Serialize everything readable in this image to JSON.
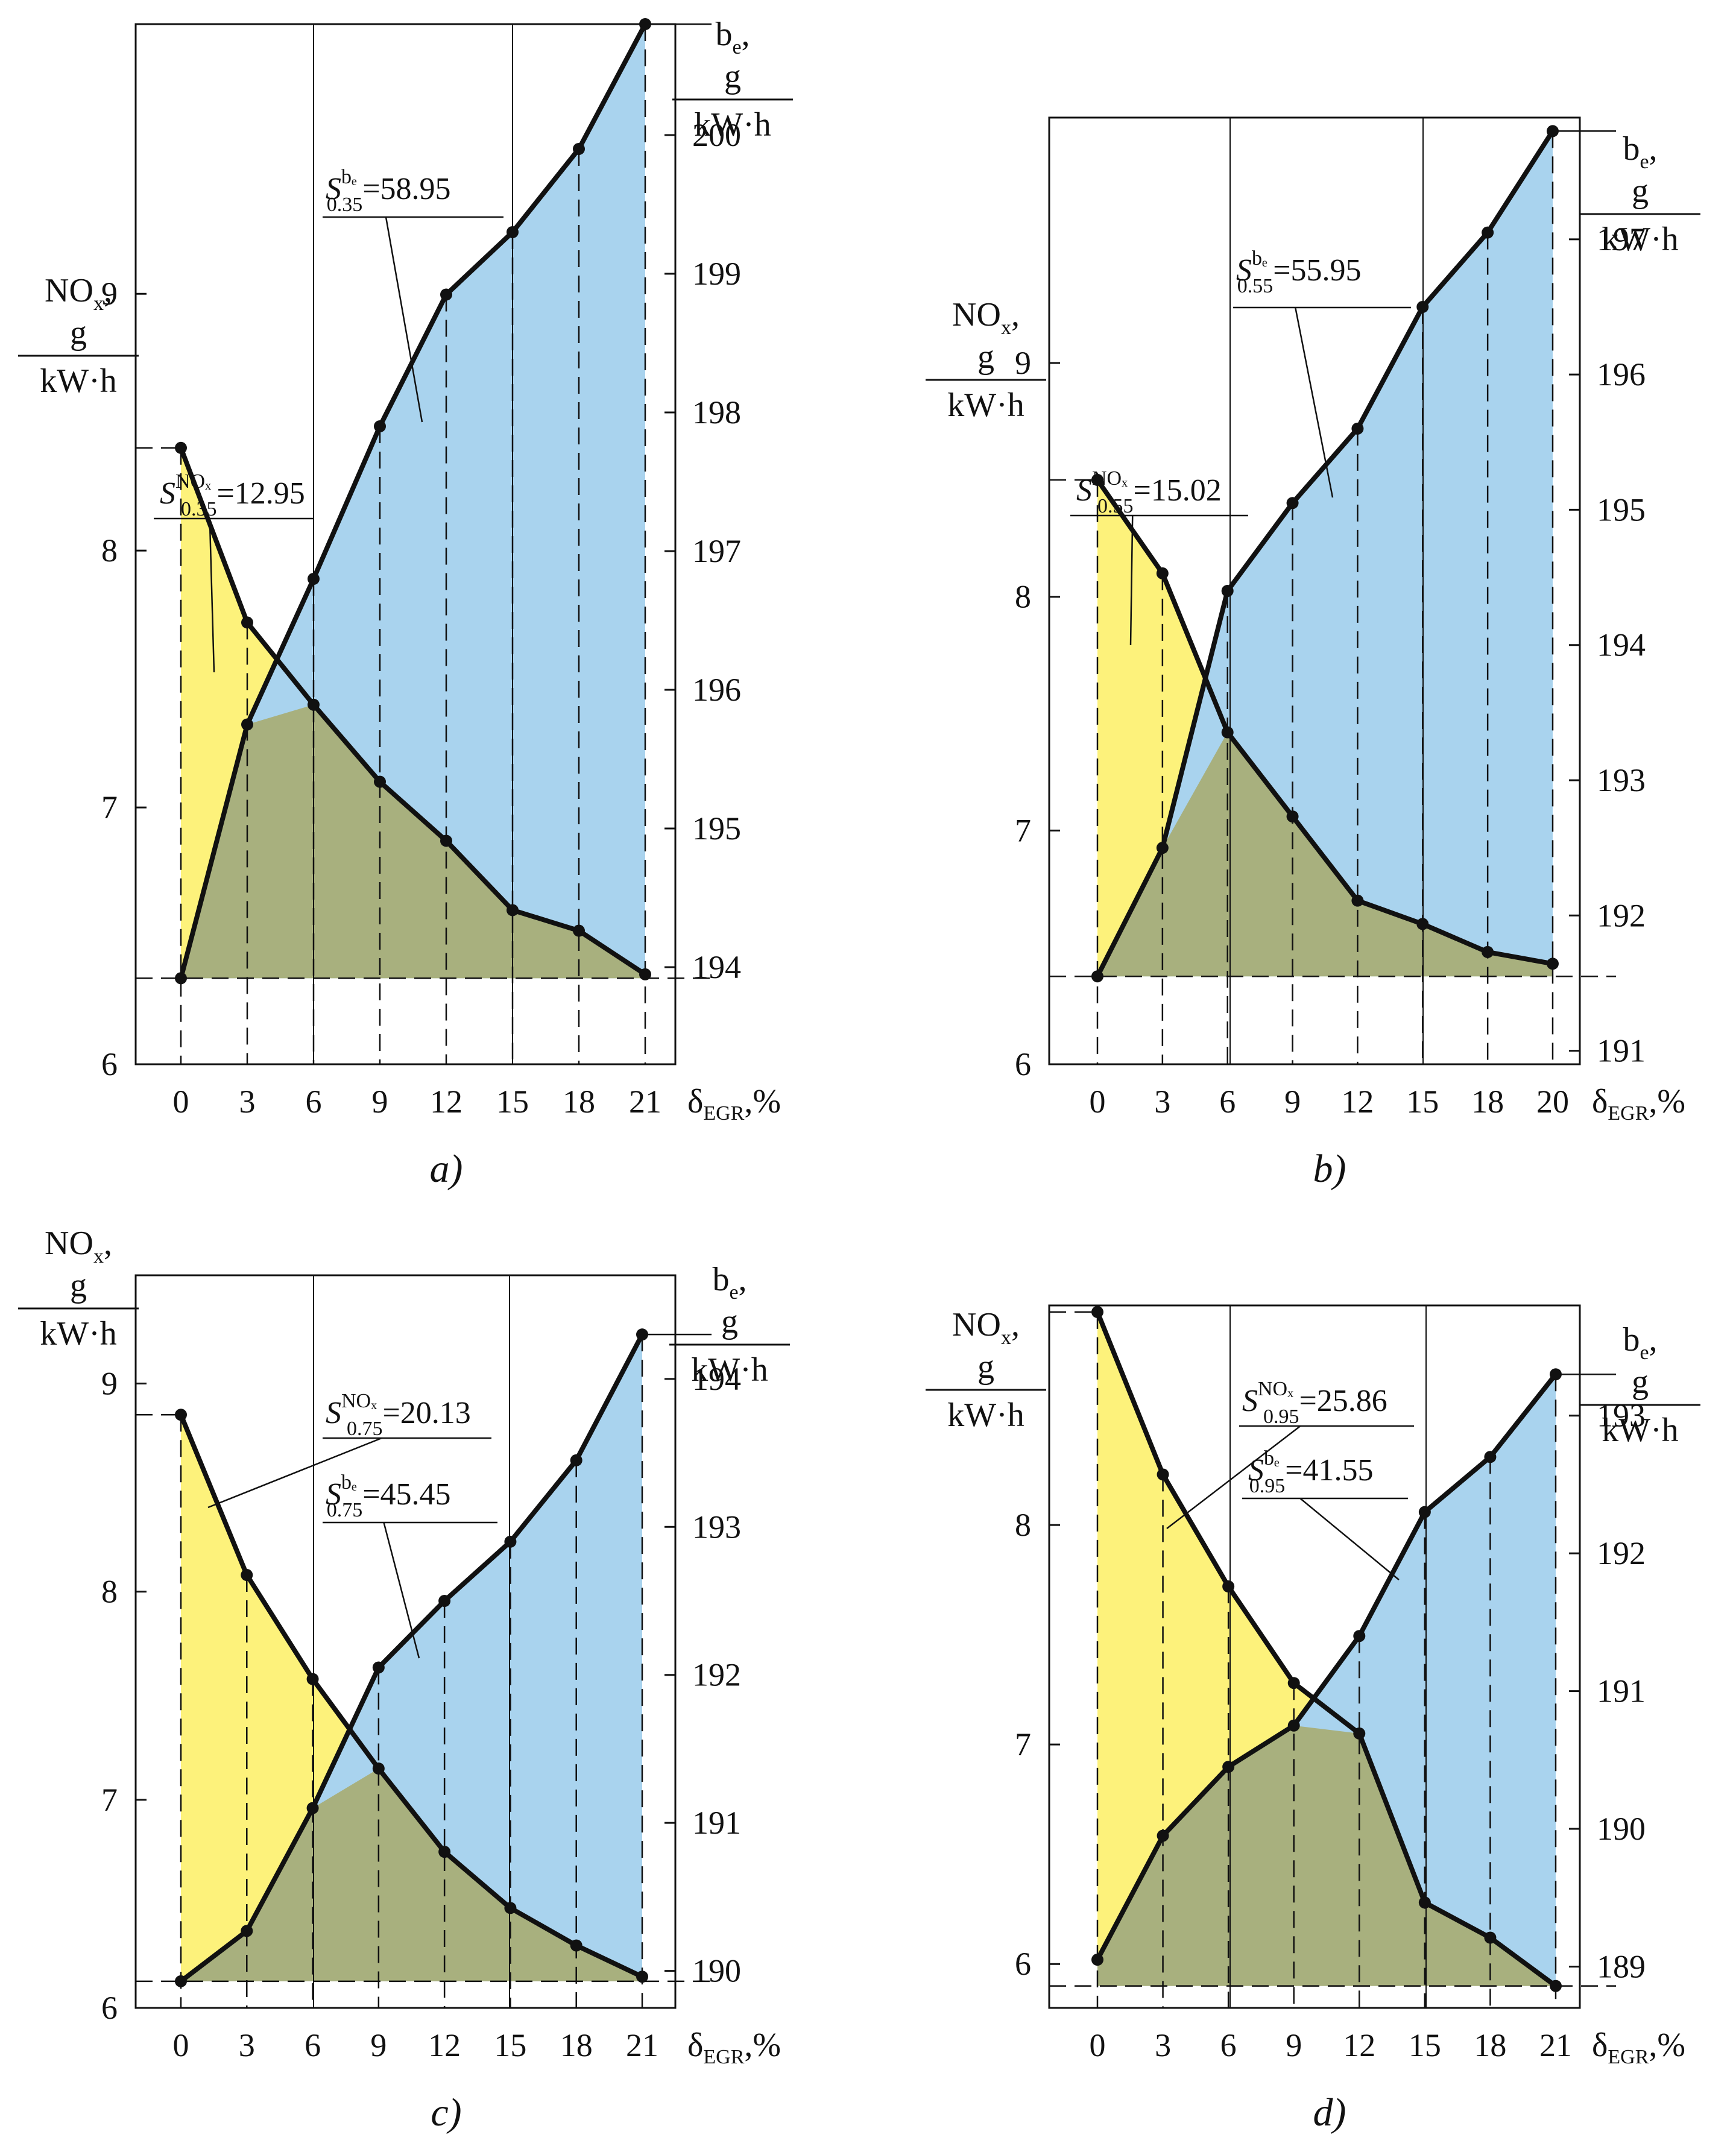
{
  "figure": {
    "x_axis_label_delta": "δ",
    "x_axis_label_sub": "EGR",
    "x_axis_label_tail": ",%",
    "nox_label": {
      "main": "NO",
      "sub": "x",
      "tail": ",",
      "num": "g",
      "den": "kW·h"
    },
    "be_label": {
      "main": "b",
      "sub": "e",
      "tail": ",",
      "num": "g",
      "den": "kW·h"
    },
    "colors": {
      "nox_fill": "#fdf27b",
      "be_fill": "#a9d3ee",
      "overlap_fill": "#a8b07e",
      "line": "#111111"
    }
  },
  "chart_data": [
    {
      "type": "line",
      "panel": "a)",
      "x": [
        0,
        3,
        6,
        9,
        12,
        15,
        18,
        21
      ],
      "x_ticks": [
        "0",
        "3",
        "6",
        "9",
        "12",
        "15",
        "18",
        "21"
      ],
      "series": [
        {
          "name": "NOx",
          "axis": "left",
          "values": [
            8.4,
            7.72,
            7.4,
            7.1,
            6.87,
            6.6,
            6.52,
            6.35
          ]
        },
        {
          "name": "be",
          "axis": "right",
          "values": [
            193.92,
            195.75,
            196.8,
            197.9,
            198.85,
            199.3,
            199.9,
            200.8
          ]
        }
      ],
      "left_axis": {
        "range": [
          6,
          10.05
        ],
        "ticks": [
          6,
          7,
          8,
          9
        ],
        "tick_labels": [
          "6",
          "7",
          "8",
          "9"
        ]
      },
      "right_axis": {
        "range": [
          193.3,
          200.8
        ],
        "ticks": [
          194,
          195,
          196,
          197,
          198,
          199,
          200
        ],
        "tick_labels": [
          "194",
          "195",
          "196",
          "197",
          "198",
          "199",
          "200"
        ]
      },
      "annotations": {
        "nox_area": {
          "S": "S",
          "sup": "NOₓ",
          "sub": "0.35",
          "value": "=12.95"
        },
        "be_area": {
          "S": "S",
          "sup": "bₑ",
          "sub": "0.35",
          "value": "=58.95"
        }
      }
    },
    {
      "type": "line",
      "panel": "b)",
      "x": [
        0,
        3,
        6,
        9,
        12,
        15,
        18,
        20
      ],
      "x_ticks": [
        "0",
        "3",
        "6",
        "9",
        "12",
        "15",
        "18",
        "20"
      ],
      "series": [
        {
          "name": "NOx",
          "axis": "left",
          "values": [
            8.5,
            8.1,
            7.42,
            7.06,
            6.7,
            6.6,
            6.48,
            6.43
          ]
        },
        {
          "name": "be",
          "axis": "right",
          "values": [
            191.55,
            192.5,
            194.4,
            195.05,
            195.6,
            196.5,
            197.05,
            197.8
          ]
        }
      ],
      "left_axis": {
        "range": [
          6,
          10.05
        ],
        "ticks": [
          6,
          7,
          8,
          9
        ],
        "tick_labels": [
          "6",
          "7",
          "8",
          "9"
        ]
      },
      "right_axis": {
        "range": [
          190.9,
          197.9
        ],
        "ticks": [
          191,
          192,
          193,
          194,
          195,
          196,
          197
        ],
        "tick_labels": [
          "191",
          "192",
          "193",
          "194",
          "195",
          "196",
          "197"
        ]
      },
      "annotations": {
        "nox_area": {
          "S": "S",
          "sup": "NOₓ",
          "sub": "0.55",
          "value": "=15.02"
        },
        "be_area": {
          "S": "S",
          "sup": "bₑ",
          "sub": "0.55",
          "value": "=55.95"
        }
      }
    },
    {
      "type": "line",
      "panel": "c)",
      "x": [
        0,
        3,
        6,
        9,
        12,
        15,
        18,
        21
      ],
      "x_ticks": [
        "0",
        "3",
        "6",
        "9",
        "12",
        "15",
        "18",
        "21"
      ],
      "series": [
        {
          "name": "NOx",
          "axis": "left",
          "values": [
            8.85,
            8.08,
            7.58,
            7.15,
            6.75,
            6.48,
            6.3,
            6.15
          ]
        },
        {
          "name": "be",
          "axis": "right",
          "values": [
            189.93,
            190.27,
            191.1,
            192.05,
            192.5,
            192.9,
            193.45,
            194.3
          ]
        }
      ],
      "left_axis": {
        "range": [
          6,
          9.52
        ],
        "ticks": [
          6,
          7,
          8,
          9
        ],
        "tick_labels": [
          "6",
          "7",
          "8",
          "9"
        ]
      },
      "right_axis": {
        "range": [
          189.75,
          194.7
        ],
        "ticks": [
          190,
          191,
          192,
          193,
          194
        ],
        "tick_labels": [
          "190",
          "191",
          "192",
          "193",
          "194"
        ]
      },
      "annotations": {
        "nox_area": {
          "S": "S",
          "sup": "NOₓ",
          "sub": "0.75",
          "value": "=20.13"
        },
        "be_area": {
          "S": "S",
          "sup": "bₑ",
          "sub": "0.75",
          "value": "=45.45"
        }
      }
    },
    {
      "type": "line",
      "panel": "d)",
      "x": [
        0,
        3,
        6,
        9,
        12,
        15,
        18,
        21
      ],
      "x_ticks": [
        "0",
        "3",
        "6",
        "9",
        "12",
        "15",
        "18",
        "21"
      ],
      "series": [
        {
          "name": "NOx",
          "axis": "left",
          "values": [
            8.97,
            8.23,
            7.72,
            7.28,
            7.05,
            6.28,
            6.12,
            5.9
          ]
        },
        {
          "name": "be",
          "axis": "right",
          "values": [
            189.05,
            189.95,
            190.45,
            190.75,
            191.4,
            192.3,
            192.7,
            193.3
          ]
        }
      ],
      "left_axis": {
        "range": [
          5.8,
          9.0
        ],
        "ticks": [
          6,
          7,
          8
        ],
        "tick_labels": [
          "6",
          "7",
          "8"
        ]
      },
      "right_axis": {
        "range": [
          188.7,
          193.8
        ],
        "ticks": [
          189,
          190,
          191,
          192,
          193
        ],
        "tick_labels": [
          "189",
          "190",
          "191",
          "192",
          "193"
        ]
      },
      "annotations": {
        "nox_area": {
          "S": "S",
          "sup": "NOₓ",
          "sub": "0.95",
          "value": "=25.86"
        },
        "be_area": {
          "S": "S",
          "sup": "bₑ",
          "sub": "0.95",
          "value": "=41.55"
        }
      }
    }
  ]
}
